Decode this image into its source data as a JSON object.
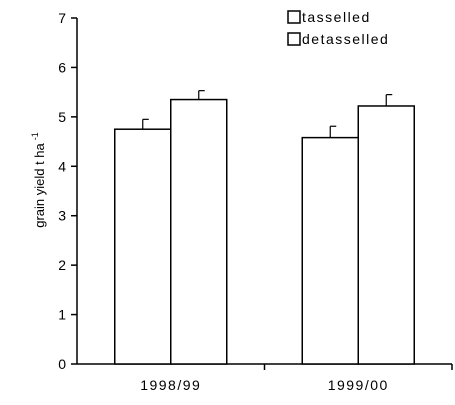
{
  "chart_data": {
    "type": "bar",
    "title": "",
    "xlabel": "",
    "ylabel": "grain yield t ha",
    "ylabel_superscript": "-1",
    "ylim": [
      0,
      7
    ],
    "yticks": [
      0,
      1,
      2,
      3,
      4,
      5,
      6,
      7
    ],
    "categories": [
      "1998/99",
      "1999/00"
    ],
    "legend": {
      "placement": "top-right"
    },
    "series": [
      {
        "name": "tasselled",
        "values": [
          4.75,
          4.58
        ],
        "errors": [
          0.2,
          0.23
        ],
        "color": "#ffffff"
      },
      {
        "name": "detasselled",
        "values": [
          5.35,
          5.22
        ],
        "errors": [
          0.18,
          0.23
        ],
        "color": "#ffffff"
      }
    ],
    "error_bars": "upper"
  }
}
